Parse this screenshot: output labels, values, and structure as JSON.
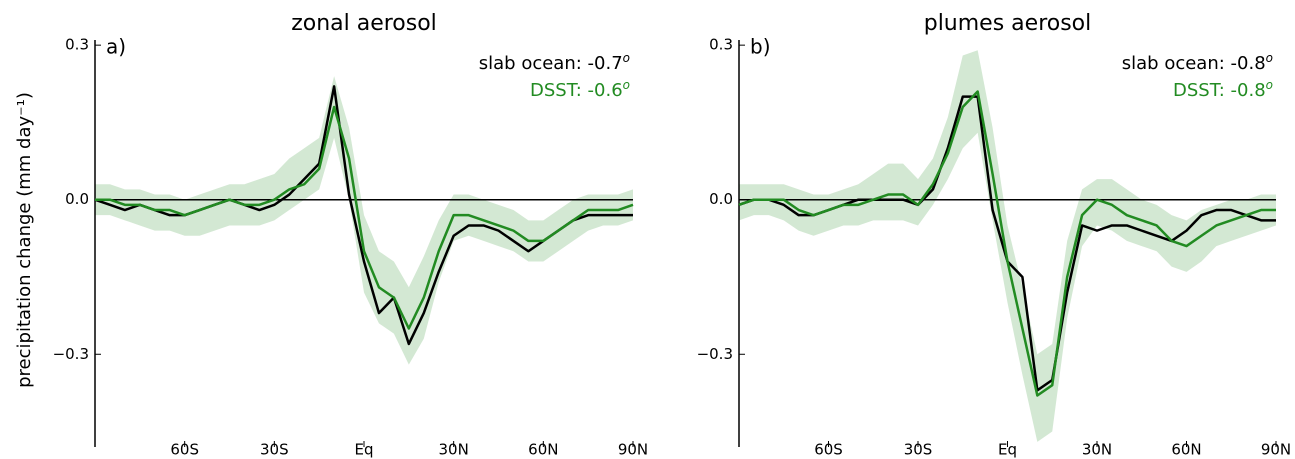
{
  "chart_data": [
    {
      "type": "line",
      "title": "zonal aerosol",
      "label": "a)",
      "ylabel": "precipitation change (mm day⁻¹)",
      "x": [
        -90,
        -85,
        -80,
        -75,
        -70,
        -65,
        -60,
        -55,
        -50,
        -45,
        -40,
        -35,
        -30,
        -25,
        -20,
        -15,
        -10,
        -5,
        0,
        5,
        10,
        15,
        20,
        25,
        30,
        35,
        40,
        45,
        50,
        55,
        60,
        65,
        70,
        75,
        80,
        85,
        90
      ],
      "xlim": [
        -90,
        90
      ],
      "xticks": [
        {
          "value": -60,
          "label": "60S"
        },
        {
          "value": -30,
          "label": "30S"
        },
        {
          "value": 0,
          "label": "Eq"
        },
        {
          "value": 30,
          "label": "30N"
        },
        {
          "value": 60,
          "label": "60N"
        },
        {
          "value": 90,
          "label": "90N"
        }
      ],
      "ylim": [
        -0.48,
        0.31
      ],
      "yticks": [
        0.3,
        {
          "value": 0,
          "label": "0.0"
        },
        {
          "value": -0.3,
          "label": "−0.3"
        }
      ],
      "zero_line": true,
      "series": [
        {
          "name": "slab ocean: -0.7",
          "name_superscript": "o",
          "color": "#000000",
          "values": [
            0.0,
            -0.01,
            -0.02,
            -0.01,
            -0.02,
            -0.03,
            -0.03,
            -0.02,
            -0.01,
            0.0,
            -0.01,
            -0.02,
            -0.01,
            0.01,
            0.04,
            0.07,
            0.22,
            0.01,
            -0.12,
            -0.22,
            -0.19,
            -0.28,
            -0.22,
            -0.14,
            -0.07,
            -0.05,
            -0.05,
            -0.06,
            -0.08,
            -0.1,
            -0.08,
            -0.06,
            -0.04,
            -0.03,
            -0.03,
            -0.03,
            -0.03
          ]
        },
        {
          "name": "DSST: -0.6",
          "name_superscript": "o",
          "color": "#228b22",
          "values": [
            0.0,
            0.0,
            -0.01,
            -0.01,
            -0.02,
            -0.02,
            -0.03,
            -0.02,
            -0.01,
            0.0,
            -0.01,
            -0.01,
            0.0,
            0.02,
            0.03,
            0.06,
            0.18,
            0.08,
            -0.1,
            -0.17,
            -0.19,
            -0.25,
            -0.19,
            -0.1,
            -0.03,
            -0.03,
            -0.04,
            -0.05,
            -0.06,
            -0.08,
            -0.08,
            -0.06,
            -0.04,
            -0.02,
            -0.02,
            -0.02,
            -0.01
          ]
        }
      ],
      "band": {
        "color": "#228b22",
        "upper": [
          0.03,
          0.03,
          0.02,
          0.02,
          0.01,
          0.01,
          0.0,
          0.01,
          0.02,
          0.03,
          0.03,
          0.04,
          0.05,
          0.08,
          0.1,
          0.12,
          0.24,
          0.14,
          -0.03,
          -0.1,
          -0.12,
          -0.17,
          -0.11,
          -0.04,
          0.01,
          0.01,
          0.0,
          -0.01,
          -0.02,
          -0.04,
          -0.04,
          -0.02,
          0.0,
          0.01,
          0.01,
          0.01,
          0.02
        ],
        "lower": [
          -0.03,
          -0.03,
          -0.04,
          -0.05,
          -0.06,
          -0.06,
          -0.07,
          -0.07,
          -0.06,
          -0.05,
          -0.05,
          -0.05,
          -0.04,
          -0.02,
          0.0,
          0.02,
          0.12,
          0.0,
          -0.18,
          -0.24,
          -0.26,
          -0.32,
          -0.27,
          -0.16,
          -0.08,
          -0.07,
          -0.08,
          -0.09,
          -0.1,
          -0.12,
          -0.12,
          -0.1,
          -0.08,
          -0.06,
          -0.05,
          -0.05,
          -0.04
        ]
      }
    },
    {
      "type": "line",
      "title": "plumes aerosol",
      "label": "b)",
      "x": [
        -90,
        -85,
        -80,
        -75,
        -70,
        -65,
        -60,
        -55,
        -50,
        -45,
        -40,
        -35,
        -30,
        -25,
        -20,
        -15,
        -10,
        -5,
        0,
        5,
        10,
        15,
        20,
        25,
        30,
        35,
        40,
        45,
        50,
        55,
        60,
        65,
        70,
        75,
        80,
        85,
        90
      ],
      "xlim": [
        -90,
        90
      ],
      "xticks": [
        {
          "value": -60,
          "label": "60S"
        },
        {
          "value": -30,
          "label": "30S"
        },
        {
          "value": 0,
          "label": "Eq"
        },
        {
          "value": 30,
          "label": "30N"
        },
        {
          "value": 60,
          "label": "60N"
        },
        {
          "value": 90,
          "label": "90N"
        }
      ],
      "ylim": [
        -0.48,
        0.31
      ],
      "yticks": [
        0.3,
        {
          "value": 0,
          "label": "0.0"
        },
        {
          "value": -0.3,
          "label": "−0.3"
        }
      ],
      "zero_line": true,
      "series": [
        {
          "name": "slab ocean: -0.8",
          "name_superscript": "o",
          "color": "#000000",
          "values": [
            -0.01,
            0.0,
            0.0,
            -0.01,
            -0.03,
            -0.03,
            -0.02,
            -0.01,
            0.0,
            0.0,
            0.0,
            0.0,
            -0.01,
            0.02,
            0.1,
            0.2,
            0.2,
            -0.02,
            -0.12,
            -0.15,
            -0.37,
            -0.35,
            -0.18,
            -0.05,
            -0.06,
            -0.05,
            -0.05,
            -0.06,
            -0.07,
            -0.08,
            -0.06,
            -0.03,
            -0.02,
            -0.02,
            -0.03,
            -0.04,
            -0.04
          ]
        },
        {
          "name": "DSST: -0.8",
          "name_superscript": "o",
          "color": "#228b22",
          "values": [
            -0.01,
            0.0,
            0.0,
            0.0,
            -0.02,
            -0.03,
            -0.02,
            -0.01,
            -0.01,
            0.0,
            0.01,
            0.01,
            -0.01,
            0.03,
            0.09,
            0.18,
            0.21,
            0.05,
            -0.12,
            -0.25,
            -0.38,
            -0.36,
            -0.15,
            -0.03,
            0.0,
            -0.01,
            -0.03,
            -0.04,
            -0.05,
            -0.08,
            -0.09,
            -0.07,
            -0.05,
            -0.04,
            -0.03,
            -0.02,
            -0.02
          ]
        }
      ],
      "band": {
        "color": "#228b22",
        "upper": [
          0.03,
          0.03,
          0.03,
          0.03,
          0.02,
          0.01,
          0.01,
          0.02,
          0.03,
          0.05,
          0.07,
          0.07,
          0.04,
          0.08,
          0.16,
          0.28,
          0.29,
          0.14,
          -0.05,
          -0.17,
          -0.3,
          -0.28,
          -0.08,
          0.02,
          0.04,
          0.04,
          0.02,
          0.0,
          -0.01,
          -0.03,
          -0.04,
          -0.02,
          -0.01,
          0.0,
          0.0,
          0.01,
          0.01
        ],
        "lower": [
          -0.04,
          -0.03,
          -0.03,
          -0.04,
          -0.06,
          -0.07,
          -0.06,
          -0.05,
          -0.05,
          -0.04,
          -0.04,
          -0.04,
          -0.05,
          -0.01,
          0.04,
          0.1,
          0.13,
          -0.04,
          -0.2,
          -0.34,
          -0.47,
          -0.45,
          -0.23,
          -0.09,
          -0.05,
          -0.06,
          -0.08,
          -0.09,
          -0.1,
          -0.13,
          -0.14,
          -0.12,
          -0.09,
          -0.08,
          -0.07,
          -0.06,
          -0.05
        ]
      }
    }
  ]
}
